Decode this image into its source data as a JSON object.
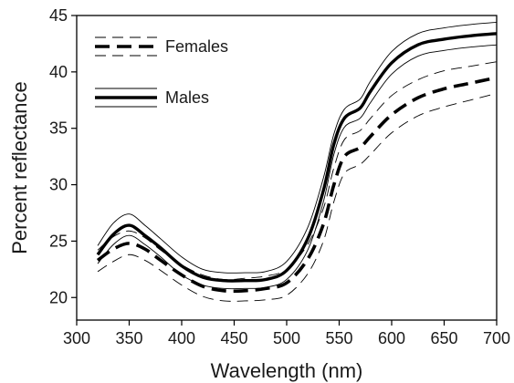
{
  "chart_data": {
    "type": "line",
    "xlabel": "Wavelength (nm)",
    "ylabel": "Percent reflectance",
    "xlim": [
      300,
      700
    ],
    "ylim": [
      18,
      45
    ],
    "x_ticks": [
      300,
      350,
      400,
      450,
      500,
      550,
      600,
      650,
      700
    ],
    "y_ticks": [
      20,
      25,
      30,
      35,
      40,
      45
    ],
    "grid": false,
    "legend_position": "top-left",
    "x": [
      320,
      335,
      350,
      365,
      380,
      400,
      420,
      440,
      460,
      480,
      500,
      520,
      535,
      545,
      555,
      570,
      580,
      600,
      625,
      650,
      675,
      700
    ],
    "series": [
      {
        "name": "Females",
        "style": "dashed",
        "color": "#000000",
        "values": [
          23.3,
          24.3,
          24.8,
          24.3,
          23.3,
          22.0,
          21.0,
          20.6,
          20.6,
          20.8,
          21.3,
          23.4,
          26.5,
          30.0,
          32.5,
          33.3,
          34.3,
          36.2,
          37.7,
          38.5,
          39.0,
          39.5
        ],
        "upper": [
          24.2,
          25.4,
          25.9,
          25.3,
          24.2,
          22.9,
          22.0,
          21.6,
          21.7,
          21.9,
          22.5,
          24.7,
          27.9,
          31.5,
          34.0,
          34.8,
          35.9,
          37.9,
          39.3,
          40.1,
          40.5,
          40.9
        ],
        "lower": [
          22.3,
          23.2,
          23.8,
          23.3,
          22.4,
          21.1,
          20.1,
          19.7,
          19.7,
          19.8,
          20.2,
          22.1,
          25.0,
          28.5,
          31.0,
          31.8,
          32.7,
          34.6,
          36.1,
          36.9,
          37.5,
          38.1
        ]
      },
      {
        "name": "Males",
        "style": "solid",
        "color": "#000000",
        "values": [
          23.8,
          25.6,
          26.4,
          25.5,
          24.4,
          22.8,
          21.8,
          21.5,
          21.5,
          21.6,
          22.4,
          25.2,
          29.5,
          33.6,
          35.9,
          36.8,
          38.3,
          40.8,
          42.4,
          42.9,
          43.2,
          43.4
        ],
        "upper": [
          24.6,
          26.6,
          27.4,
          26.4,
          25.2,
          23.6,
          22.5,
          22.2,
          22.2,
          22.3,
          23.2,
          26.2,
          30.6,
          34.5,
          36.7,
          37.6,
          39.2,
          41.8,
          43.4,
          43.9,
          44.2,
          44.4
        ],
        "lower": [
          23.0,
          24.7,
          25.5,
          24.7,
          23.6,
          22.0,
          21.1,
          20.8,
          20.8,
          20.9,
          21.6,
          24.2,
          28.5,
          32.7,
          35.1,
          35.9,
          37.3,
          39.8,
          41.4,
          41.9,
          42.2,
          42.4
        ]
      }
    ]
  }
}
